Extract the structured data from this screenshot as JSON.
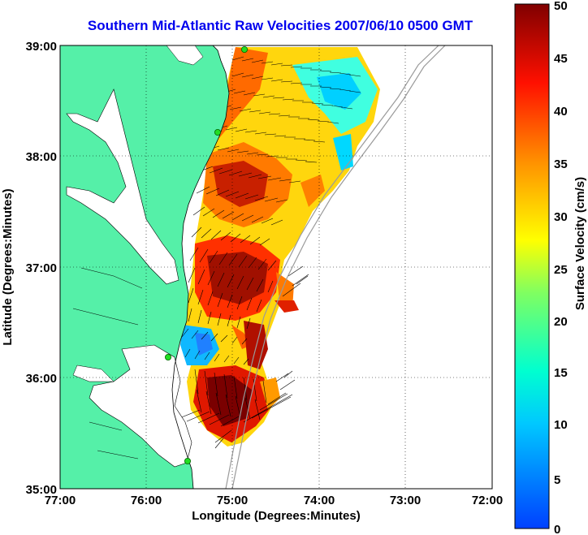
{
  "title": "Southern Mid-Atlantic Raw Velocities 2007/06/10 0500 GMT",
  "map": {
    "xlabel": "Longitude (Degrees:Minutes)",
    "ylabel": "Latitude (Degrees:Minutes)",
    "x_ticks": [
      "77:00",
      "76:00",
      "75:00",
      "74:00",
      "73:00",
      "72:00"
    ],
    "y_ticks": [
      "39:00",
      "38:00",
      "37:00",
      "36:00",
      "35:00"
    ],
    "lon_range": [
      -77,
      -72
    ],
    "lat_range": [
      35,
      39
    ],
    "grid": true,
    "land_color": "#55f0a8",
    "station_color": "#22dd22"
  },
  "colorbar": {
    "label": "Surface Velocity (cm/s)",
    "range": [
      0,
      50
    ],
    "ticks": [
      "0",
      "5",
      "10",
      "15",
      "20",
      "25",
      "30",
      "35",
      "40",
      "45",
      "50"
    ]
  }
}
